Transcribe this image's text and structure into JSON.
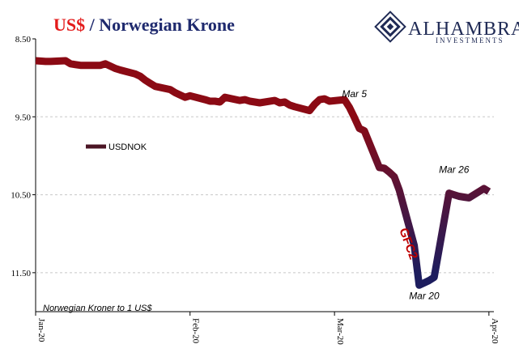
{
  "title": {
    "part1": "US$",
    "part2": " / Norwegian Krone",
    "part1_color": "#e31b1b",
    "part2_color": "#1f2a6e"
  },
  "brand": {
    "name": "ALHAMBRA",
    "sub": "INVESTMENTS",
    "logo_icon": "diamond-grid-logo"
  },
  "chart_data": {
    "type": "line",
    "title": "US$ / Norwegian Krone",
    "ylabel_note": "Norwegian Kroner to 1 US$",
    "y_inverted": true,
    "ylim": [
      8.5,
      12.0
    ],
    "y_ticks": [
      8.5,
      9.5,
      10.5,
      11.5
    ],
    "y_tick_labels": [
      "8.50",
      "9.50",
      "10.50",
      "11.50"
    ],
    "x_ticks": [
      {
        "label": "Jan-20",
        "day": 0
      },
      {
        "label": "Feb-20",
        "day": 31
      },
      {
        "label": "Mar-20",
        "day": 60
      },
      {
        "label": "Apr-20",
        "day": 91
      }
    ],
    "grid": "horizontal dashed",
    "legend": {
      "position": "left-middle",
      "entries": [
        "USDNOK"
      ]
    },
    "series": [
      {
        "name": "USDNOK",
        "gradient": [
          "#8b0a14",
          "#1d1d5e"
        ],
        "x": [
          0,
          2,
          3,
          6,
          7,
          8,
          9,
          10,
          13,
          14,
          15,
          16,
          17,
          20,
          21,
          22,
          23,
          24,
          27,
          28,
          29,
          30,
          31,
          34,
          35,
          36,
          37,
          38,
          41,
          42,
          43,
          44,
          45,
          48,
          49,
          50,
          51,
          52,
          55,
          56,
          57,
          58,
          59,
          62,
          63,
          64,
          65,
          66,
          69,
          70,
          71,
          72,
          73,
          76,
          77,
          78,
          79,
          80,
          83,
          84,
          85,
          86,
          87,
          90,
          91
        ],
        "y": [
          8.78,
          8.79,
          8.79,
          8.78,
          8.82,
          8.83,
          8.84,
          8.84,
          8.84,
          8.82,
          8.85,
          8.88,
          8.9,
          8.95,
          8.98,
          9.03,
          9.07,
          9.11,
          9.15,
          9.19,
          9.22,
          9.25,
          9.23,
          9.28,
          9.3,
          9.3,
          9.31,
          9.25,
          9.29,
          9.28,
          9.3,
          9.31,
          9.32,
          9.29,
          9.32,
          9.31,
          9.35,
          9.37,
          9.42,
          9.34,
          9.28,
          9.27,
          9.3,
          9.28,
          9.38,
          9.51,
          9.65,
          9.68,
          10.15,
          10.16,
          10.21,
          10.27,
          10.44,
          11.15,
          11.66,
          11.63,
          11.6,
          11.56,
          10.48,
          10.5,
          10.52,
          10.53,
          10.54,
          10.42,
          10.46
        ]
      }
    ],
    "annotations": [
      {
        "text": "Mar 5",
        "x": 64,
        "y": 9.25
      },
      {
        "text": "Mar 20",
        "x": 78,
        "y": 11.84
      },
      {
        "text": "Mar 26",
        "x": 84,
        "y": 10.22
      },
      {
        "text": "GFC2",
        "x": 73,
        "y": 10.95,
        "color": "#c00000"
      }
    ]
  }
}
